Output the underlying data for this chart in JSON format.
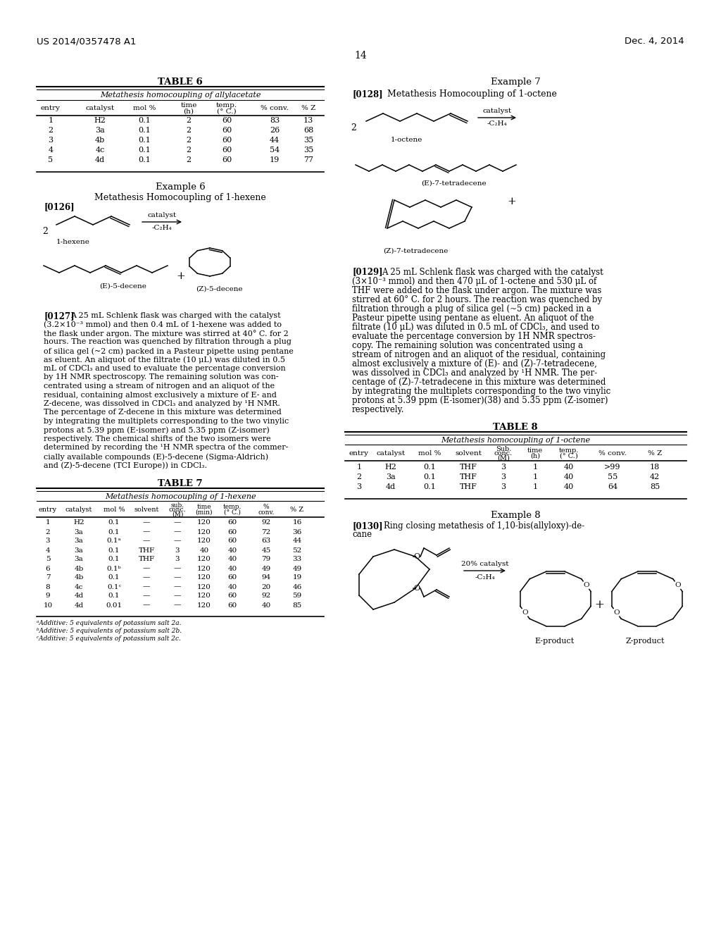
{
  "page_header_left": "US 2014/0357478 A1",
  "page_header_right": "Dec. 4, 2014",
  "page_number": "14",
  "background_color": "#ffffff",
  "text_color": "#000000",
  "table6_title": "TABLE 6",
  "table6_subtitle": "Metathesis homocoupling of allylacetate",
  "table6_data": [
    [
      "1",
      "H2",
      "0.1",
      "2",
      "60",
      "83",
      "13"
    ],
    [
      "2",
      "3a",
      "0.1",
      "2",
      "60",
      "26",
      "68"
    ],
    [
      "3",
      "4b",
      "0.1",
      "2",
      "60",
      "44",
      "35"
    ],
    [
      "4",
      "4c",
      "0.1",
      "2",
      "60",
      "54",
      "35"
    ],
    [
      "5",
      "4d",
      "0.1",
      "2",
      "60",
      "19",
      "77"
    ]
  ],
  "example6_title": "Example 6",
  "example6_subtitle": "Metathesis Homocoupling of 1-hexene",
  "para0127_label": "[0127]",
  "para0127_lines": [
    "A 25 mL Schlenk flask was charged with the catalyst",
    "(3.2×10⁻³ mmol) and then 0.4 mL of 1-hexene was added to",
    "the flask under argon. The mixture was stirred at 40° C. for 2",
    "hours. The reaction was quenched by filtration through a plug",
    "of silica gel (~2 cm) packed in a Pasteur pipette using pentane",
    "as eluent. An aliquot of the filtrate (10 μL) was diluted in 0.5",
    "mL of CDCl₃ and used to evaluate the percentage conversion",
    "by 1H NMR spectroscopy. The remaining solution was con-",
    "centrated using a stream of nitrogen and an aliquot of the",
    "residual, containing almost exclusively a mixture of E- and",
    "Z-decene, was dissolved in CDCl₃ and analyzed by ¹H NMR.",
    "The percentage of Z-decene in this mixture was determined",
    "by integrating the multiplets corresponding to the two vinylic",
    "protons at 5.39 ppm (E-isomer) and 5.35 ppm (Z-isomer)",
    "respectively. The chemical shifts of the two isomers were",
    "determined by recording the ¹H NMR spectra of the commer-",
    "cially available compounds (E)-5-decene (Sigma-Aldrich)",
    "and (Z)-5-decene (TCI Europe)) in CDCl₃."
  ],
  "table7_title": "TABLE 7",
  "table7_subtitle": "Metathesis homocoupling of 1-hexene",
  "table7_data": [
    [
      "1",
      "H2",
      "0.1",
      "—",
      "—",
      "120",
      "60",
      "92",
      "16"
    ],
    [
      "2",
      "3a",
      "0.1",
      "—",
      "—",
      "120",
      "60",
      "72",
      "36"
    ],
    [
      "3",
      "3a",
      "0.1ᵃ",
      "—",
      "—",
      "120",
      "60",
      "63",
      "44"
    ],
    [
      "4",
      "3a",
      "0.1",
      "THF",
      "3",
      "40",
      "40",
      "45",
      "52"
    ],
    [
      "5",
      "3a",
      "0.1",
      "THF",
      "3",
      "120",
      "40",
      "79",
      "33"
    ],
    [
      "6",
      "4b",
      "0.1ᵇ",
      "—",
      "—",
      "120",
      "40",
      "49",
      "49"
    ],
    [
      "7",
      "4b",
      "0.1",
      "—",
      "—",
      "120",
      "60",
      "94",
      "19"
    ],
    [
      "8",
      "4c",
      "0.1ᶜ",
      "—",
      "—",
      "120",
      "40",
      "20",
      "46"
    ],
    [
      "9",
      "4d",
      "0.1",
      "—",
      "—",
      "120",
      "60",
      "92",
      "59"
    ],
    [
      "10",
      "4d",
      "0.01",
      "—",
      "—",
      "120",
      "60",
      "40",
      "85"
    ]
  ],
  "table7_footnotes": [
    "ᵃAdditive: 5 equivalents of potassium salt 2a.",
    "ᵇAdditive: 5 equivalents of potassium salt 2b.",
    "ᶜAdditive: 5 equivalents of potassium salt 2c."
  ],
  "example7_title": "Example 7",
  "example7_para_label": "[0128]",
  "example7_subtitle": "Metathesis Homocoupling of 1-octene",
  "para0129_label": "[0129]",
  "para0129_lines": [
    "A 25 mL Schlenk flask was charged with the catalyst",
    "(3×10⁻³ mmol) and then 470 μL of 1-octene and 530 μL of",
    "THF were added to the flask under argon. The mixture was",
    "stirred at 60° C. for 2 hours. The reaction was quenched by",
    "filtration through a plug of silica gel (~5 cm) packed in a",
    "Pasteur pipette using pentane as eluent. An aliquot of the",
    "filtrate (10 μL) was diluted in 0.5 mL of CDCl₃, and used to",
    "evaluate the percentage conversion by 1H NMR spectros-",
    "copy. The remaining solution was concentrated using a",
    "stream of nitrogen and an aliquot of the residual, containing",
    "almost exclusively a mixture of (E)- and (Z)-7-tetradecene,",
    "was dissolved in CDCl₃ and analyzed by ¹H NMR. The per-",
    "centage of (Z)-7-tetradecene in this mixture was determined",
    "by integrating the multiplets corresponding to the two vinylic",
    "protons at 5.39 ppm (E-isomer)(38) and 5.35 ppm (Z-isomer)",
    "respectively."
  ],
  "table8_title": "TABLE 8",
  "table8_subtitle": "Metathesis homocoupling of 1-octene",
  "table8_data": [
    [
      "1",
      "H2",
      "0.1",
      "THF",
      "3",
      "1",
      "40",
      ">99",
      "18"
    ],
    [
      "2",
      "3a",
      "0.1",
      "THF",
      "3",
      "1",
      "40",
      "55",
      "42"
    ],
    [
      "3",
      "4d",
      "0.1",
      "THF",
      "3",
      "1",
      "40",
      "64",
      "85"
    ]
  ],
  "example8_title": "Example 8",
  "example8_label": "[0130]",
  "example8_subtitle_line1": "Ring closing metathesis of 1,10-bis(allyloxy)-de-",
  "example8_subtitle_line2": "cane",
  "eproduct_label": "E-product",
  "zproduct_label": "Z-product"
}
